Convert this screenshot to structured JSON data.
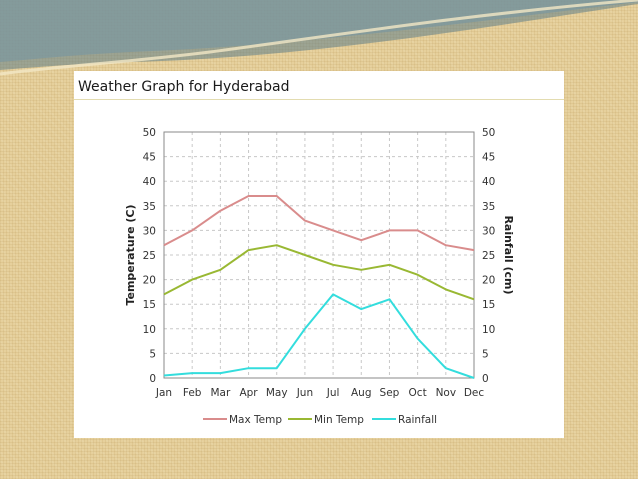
{
  "chart_data": {
    "type": "line",
    "title": "Weather Graph for Hyderabad",
    "ylabel": "Temperature (C)",
    "y2label": "Rainfall (cm)",
    "xlabel": "",
    "categories": [
      "Jan",
      "Feb",
      "Mar",
      "Apr",
      "May",
      "Jun",
      "Jul",
      "Aug",
      "Sep",
      "Oct",
      "Nov",
      "Dec"
    ],
    "ylim": [
      0,
      50
    ],
    "y2lim": [
      0,
      50
    ],
    "yticks": [
      0,
      5,
      10,
      15,
      20,
      25,
      30,
      35,
      40,
      45,
      50
    ],
    "grid": true,
    "legend_position": "bottom",
    "series": [
      {
        "name": "Max Temp",
        "axis": "left",
        "color": "#d98c8c",
        "values": [
          27,
          30,
          34,
          37,
          37,
          32,
          30,
          28,
          30,
          30,
          27,
          26
        ]
      },
      {
        "name": "Min Temp",
        "axis": "left",
        "color": "#99b833",
        "values": [
          17,
          20,
          22,
          26,
          27,
          25,
          23,
          22,
          23,
          21,
          18,
          16
        ]
      },
      {
        "name": "Rainfall",
        "axis": "right",
        "color": "#33dddd",
        "values": [
          0.5,
          1,
          1,
          2,
          2,
          10,
          17,
          14,
          16,
          8,
          2,
          0
        ]
      }
    ]
  }
}
